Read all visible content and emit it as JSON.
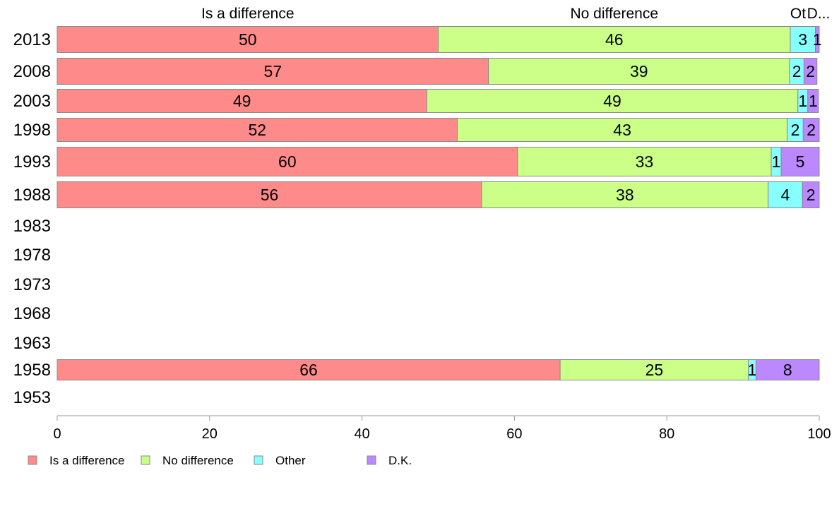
{
  "chart_data": {
    "type": "bar",
    "orientation": "horizontal",
    "stacked": true,
    "title": "",
    "xlabel": "",
    "ylabel": "",
    "xlim": [
      0,
      100
    ],
    "x_ticks": [
      "0",
      "20",
      "40",
      "60",
      "80",
      "100"
    ],
    "grid": false,
    "legend_position": "bottom",
    "categories": [
      "2013",
      "2008",
      "2003",
      "1998",
      "1993",
      "1988",
      "1983",
      "1978",
      "1973",
      "1968",
      "1963",
      "1958",
      "1953"
    ],
    "top_labels": [
      "Is a difference",
      "No difference",
      "Ot",
      "D..."
    ],
    "series": [
      {
        "name": "Is a difference",
        "color": "#ff8a8a",
        "values": [
          50,
          56.6,
          48.5,
          52.5,
          60.4,
          55.7,
          null,
          null,
          null,
          null,
          null,
          66,
          null
        ],
        "labels": [
          "50",
          "57",
          "49",
          "52",
          "60",
          "56",
          "",
          "",
          "",
          "",
          "",
          "66",
          ""
        ]
      },
      {
        "name": "No difference",
        "color": "#ccff88",
        "values": [
          46.2,
          39.5,
          48.7,
          43.3,
          33.3,
          37.6,
          null,
          null,
          null,
          null,
          null,
          24.7,
          null
        ],
        "labels": [
          "46",
          "39",
          "49",
          "43",
          "33",
          "38",
          "",
          "",
          "",
          "",
          "",
          "25",
          ""
        ]
      },
      {
        "name": "Other",
        "color": "#88ffff",
        "values": [
          3.3,
          1.9,
          1.3,
          2.1,
          1.3,
          4.5,
          null,
          null,
          null,
          null,
          null,
          1.0,
          null
        ],
        "labels": [
          "3",
          "2",
          "1",
          "2",
          "1",
          "4",
          "",
          "",
          "",
          "",
          "",
          "1",
          ""
        ]
      },
      {
        "name": "D.K.",
        "color": "#bb88ff",
        "values": [
          0.5,
          1.7,
          1.4,
          2.1,
          5.0,
          2.2,
          null,
          null,
          null,
          null,
          null,
          8.3,
          null
        ],
        "labels": [
          "1",
          "2",
          "1",
          "2",
          "5",
          "2",
          "",
          "",
          "",
          "",
          "",
          "8",
          ""
        ]
      }
    ]
  }
}
